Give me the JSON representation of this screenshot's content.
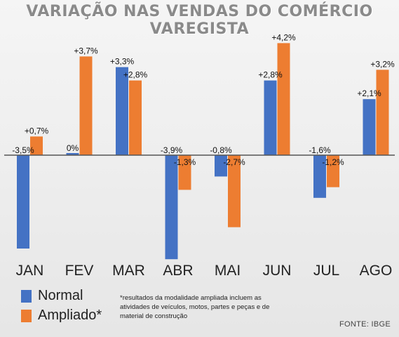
{
  "title": "VARIAÇÃO NAS VENDAS DO COMÉRCIO VAREGISTA",
  "chart_data": {
    "type": "bar",
    "categories": [
      "JAN",
      "FEV",
      "MAR",
      "ABR",
      "MAI",
      "JUN",
      "JUL",
      "AGO"
    ],
    "series": [
      {
        "name": "Normal",
        "color": "#4472c4",
        "values": [
          -3.5,
          0,
          3.3,
          -3.9,
          -0.8,
          2.8,
          -1.6,
          2.1
        ],
        "labels": [
          "-3,5%",
          "0%",
          "+3,3%",
          "-3,9%",
          "-0,8%",
          "+2,8%",
          "-1,6%",
          "+2,1%"
        ]
      },
      {
        "name": "Ampliado*",
        "color": "#ed7d31",
        "values": [
          0.7,
          3.7,
          2.8,
          -1.3,
          -2.7,
          4.2,
          -1.2,
          3.2
        ],
        "labels": [
          "+0,7%",
          "+3,7%",
          "+2,8%",
          "-1,3%",
          "-2,7%",
          "+4,2%",
          "-1,2%",
          "+3,2%"
        ]
      }
    ],
    "ylim": [
      -4.2,
      4.5
    ],
    "grid": false,
    "legend_position": "bottom-left"
  },
  "legend": [
    {
      "label": "Normal",
      "color": "#4472c4"
    },
    {
      "label": "Ampliado*",
      "color": "#ed7d31"
    }
  ],
  "footnote": "*resultados da modalidade ampliada incluem as atividades de veículos, motos, partes e peças e de material de construção",
  "source": "FONTE: IBGE"
}
